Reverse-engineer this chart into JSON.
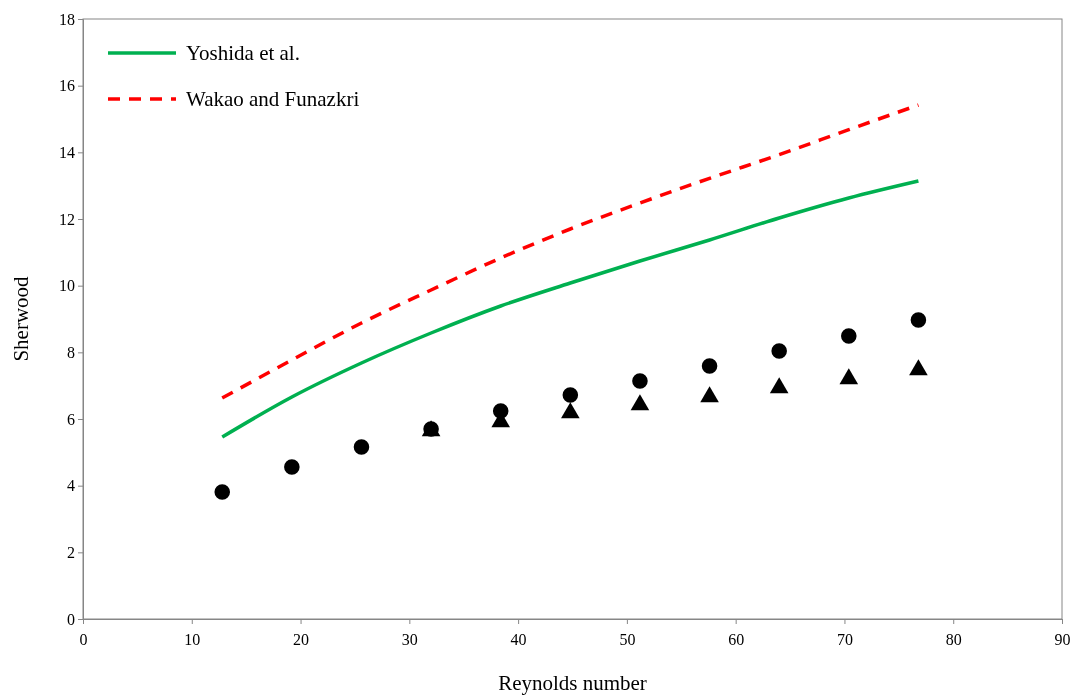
{
  "chart_data": {
    "type": "line",
    "xlabel": "Reynolds number",
    "ylabel": "Sherwood",
    "xlim": [
      0,
      90
    ],
    "ylim": [
      0,
      18
    ],
    "xticks": [
      0,
      10,
      20,
      30,
      40,
      50,
      60,
      70,
      80,
      90
    ],
    "yticks": [
      0,
      2,
      4,
      6,
      8,
      10,
      12,
      14,
      16,
      18
    ],
    "grid": false,
    "legend": "top left",
    "x": [
      12.8,
      19.2,
      25.6,
      32,
      38.4,
      44.8,
      51.2,
      57.6,
      64,
      70.4,
      76.8
    ],
    "series": [
      {
        "name": "Yoshida et al.",
        "color": "#00b050",
        "line_style": "solid",
        "marker": "none",
        "values": [
          5.46,
          6.66,
          7.68,
          8.58,
          9.39,
          10.08,
          10.74,
          11.37,
          12.03,
          12.63,
          13.14
        ]
      },
      {
        "name": "Wakao and Funazkri",
        "color": "#ff0000",
        "line_style": "dashed",
        "marker": "none",
        "values": [
          6.63,
          7.77,
          8.88,
          9.87,
          10.83,
          11.7,
          12.48,
          13.22,
          13.93,
          14.68,
          15.42
        ]
      },
      {
        "type": "scatter",
        "color": "#000000",
        "marker": "circle",
        "values": [
          3.81,
          4.56,
          5.16,
          5.7,
          6.24,
          6.72,
          7.14,
          7.59,
          8.04,
          8.49,
          8.97
        ]
      },
      {
        "type": "scatter",
        "color": "#000000",
        "marker": "triangle",
        "values": [
          null,
          null,
          null,
          5.64,
          5.91,
          6.18,
          6.42,
          6.66,
          6.93,
          7.2,
          7.47
        ]
      }
    ]
  }
}
